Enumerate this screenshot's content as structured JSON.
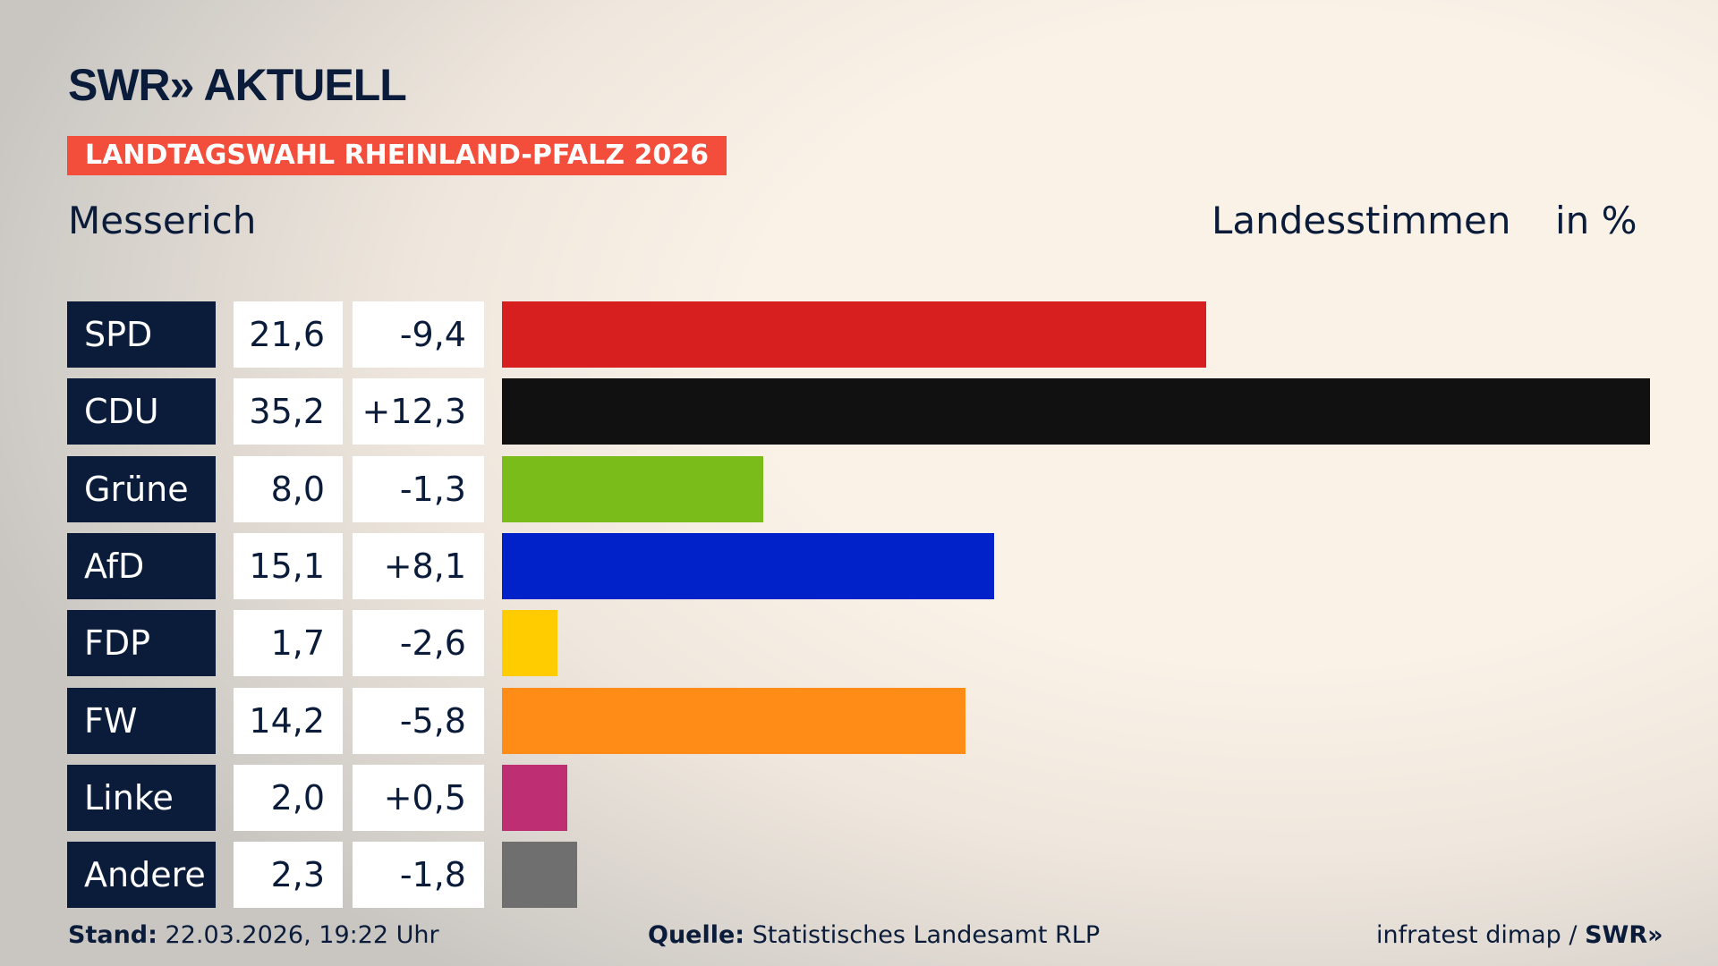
{
  "header": {
    "logo": "SWR» AKTUELL",
    "banner": "LANDTAGSWAHL RHEINLAND-PFALZ 2026",
    "place": "Messerich",
    "vote_type": "Landesstimmen",
    "unit": "in %"
  },
  "chart_data": {
    "type": "bar",
    "orientation": "horizontal",
    "xlim": [
      0,
      35.2
    ],
    "categories": [
      "SPD",
      "CDU",
      "Grüne",
      "AfD",
      "FDP",
      "FW",
      "Linke",
      "Andere"
    ],
    "values": [
      21.6,
      35.2,
      8.0,
      15.1,
      1.7,
      14.2,
      2.0,
      2.3
    ],
    "value_labels": [
      "21,6",
      "35,2",
      "8,0",
      "15,1",
      "1,7",
      "14,2",
      "2,0",
      "2,3"
    ],
    "diff_labels": [
      "-9,4",
      "+12,3",
      "-1,3",
      "+8,1",
      "-2,6",
      "-5,8",
      "+0,5",
      "-1,8"
    ],
    "colors": [
      "#d81f1f",
      "#111111",
      "#7abd1b",
      "#0022c8",
      "#ffcc00",
      "#ff8c17",
      "#bd2f72",
      "#6f6f6f"
    ]
  },
  "footer": {
    "stand_label": "Stand:",
    "stand_value": "22.03.2026, 19:22 Uhr",
    "source_label": "Quelle:",
    "source_value": "Statistisches Landesamt RLP",
    "credit": "infratest dimap / ",
    "credit_logo": "SWR»"
  }
}
